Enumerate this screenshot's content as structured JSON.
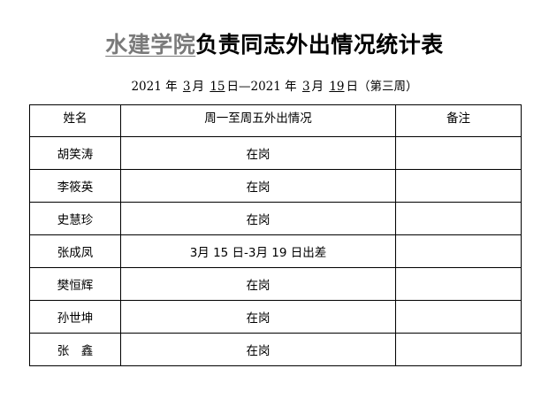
{
  "title": {
    "org": "水建学院",
    "rest": "负责同志外出情况统计表"
  },
  "subtitle": {
    "year1": "2021",
    "nian1": "年",
    "month1": "3",
    "yue1": "月",
    "day1": "15",
    "ri1": "日—",
    "year2": "2021",
    "nian2": "年",
    "month2": "3",
    "yue2": "月",
    "day2": "19",
    "ri2": "日",
    "week": "（第三周）"
  },
  "table": {
    "headers": [
      "姓名",
      "周一至周五外出情况",
      "备注"
    ],
    "rows": [
      {
        "name": "胡笑涛",
        "status": "在岗",
        "note": ""
      },
      {
        "name": "李筱英",
        "status": "在岗",
        "note": ""
      },
      {
        "name": "史慧珍",
        "status": "在岗",
        "note": ""
      },
      {
        "name": "张成凤",
        "status": "3月 15 日-3月 19 日出差",
        "note": ""
      },
      {
        "name": "樊恒辉",
        "status": "在岗",
        "note": ""
      },
      {
        "name": "孙世坤",
        "status": "在岗",
        "note": ""
      },
      {
        "name": "张　鑫",
        "status": "在岗",
        "note": ""
      }
    ]
  }
}
